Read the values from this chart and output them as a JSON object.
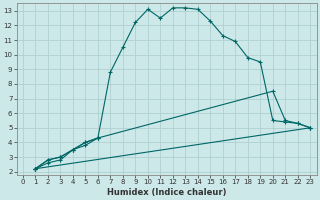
{
  "xlabel": "Humidex (Indice chaleur)",
  "bg_color": "#cce8e8",
  "grid_color": "#b0d0d0",
  "line_color": "#006666",
  "xlim": [
    -0.5,
    23.5
  ],
  "ylim": [
    1.8,
    13.5
  ],
  "xticks": [
    0,
    1,
    2,
    3,
    4,
    5,
    6,
    7,
    8,
    9,
    10,
    11,
    12,
    13,
    14,
    15,
    16,
    17,
    18,
    19,
    20,
    21,
    22,
    23
  ],
  "yticks": [
    2,
    3,
    4,
    5,
    6,
    7,
    8,
    9,
    10,
    11,
    12,
    13
  ],
  "line1_x": [
    1,
    2,
    3,
    4,
    5,
    6,
    7,
    8,
    9,
    10,
    11,
    12,
    13,
    14,
    15,
    16,
    17,
    18,
    19,
    20,
    21,
    22,
    23
  ],
  "line1_y": [
    2.2,
    2.8,
    3.0,
    3.5,
    4.0,
    4.3,
    8.8,
    10.5,
    12.2,
    13.1,
    12.5,
    13.2,
    13.2,
    13.1,
    12.3,
    11.3,
    10.9,
    9.8,
    9.5,
    5.5,
    5.4,
    5.3,
    5.0
  ],
  "line2_x": [
    1,
    2,
    3,
    4,
    5,
    6,
    20,
    21,
    22,
    23
  ],
  "line2_y": [
    2.2,
    2.8,
    3.0,
    3.5,
    4.0,
    4.3,
    7.5,
    5.5,
    5.3,
    5.0
  ],
  "line3_x": [
    1,
    23
  ],
  "line3_y": [
    2.2,
    5.0
  ],
  "line4_x": [
    1,
    2,
    3,
    4,
    5,
    6
  ],
  "line4_y": [
    2.2,
    2.6,
    2.8,
    3.5,
    3.8,
    4.3
  ]
}
